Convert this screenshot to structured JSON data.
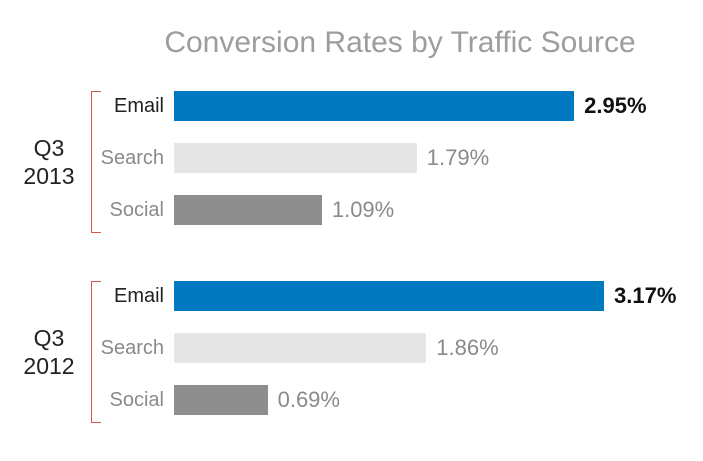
{
  "chart_data": {
    "type": "bar",
    "orientation": "horizontal",
    "title": "Conversion Rates by Traffic Source",
    "xlabel": "",
    "ylabel": "",
    "grid": false,
    "value_suffix": "%",
    "groups": [
      {
        "label_lines": [
          "Q3",
          "2013"
        ],
        "bars": [
          {
            "category": "Email",
            "value": 2.95,
            "label": "2.95%"
          },
          {
            "category": "Search",
            "value": 1.79,
            "label": "1.79%"
          },
          {
            "category": "Social",
            "value": 1.09,
            "label": "1.09%"
          }
        ]
      },
      {
        "label_lines": [
          "Q3",
          "2012"
        ],
        "bars": [
          {
            "category": "Email",
            "value": 3.17,
            "label": "3.17%"
          },
          {
            "category": "Search",
            "value": 1.86,
            "label": "1.86%"
          },
          {
            "category": "Social",
            "value": 0.69,
            "label": "0.69%"
          }
        ]
      }
    ],
    "colors": {
      "Email": "#0079c1",
      "Search": "#e6e6e6",
      "Social": "#8e8e8e",
      "bracket": "#d9534f",
      "highlight_text": "#111111",
      "muted_text": "#8a8a8a"
    }
  }
}
